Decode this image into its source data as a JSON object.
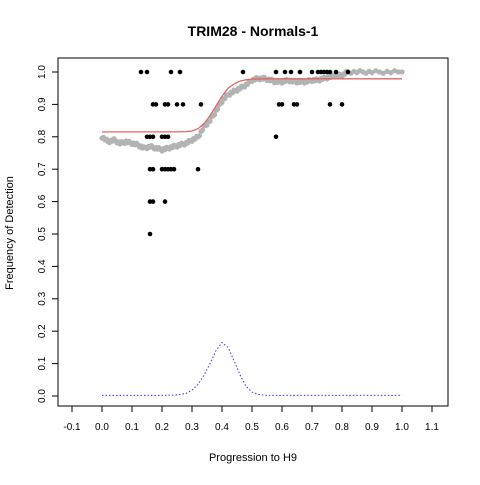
{
  "chart_data": {
    "type": "scatter",
    "title": "TRIM28 - Normals-1",
    "xlabel": "Progression to H9",
    "ylabel": "Frequency of Detection",
    "xlim": [
      -0.1,
      1.1
    ],
    "ylim": [
      0.0,
      1.0
    ],
    "x_ticks": [
      "-0.1",
      "0.0",
      "0.1",
      "0.2",
      "0.3",
      "0.4",
      "0.5",
      "0.6",
      "0.7",
      "0.8",
      "0.9",
      "1.0",
      "1.1"
    ],
    "y_ticks": [
      "0.0",
      "0.1",
      "0.2",
      "0.3",
      "0.4",
      "0.5",
      "0.6",
      "0.7",
      "0.8",
      "0.9",
      "1.0"
    ],
    "grid": false,
    "colors": {
      "observed": "#000000",
      "smoothed": "#b3b3b3",
      "fit": "#e06666",
      "density": "#3333ff"
    },
    "series": [
      {
        "type": "scatter",
        "points": [
          [
            0.13,
            1.0
          ],
          [
            0.15,
            1.0
          ],
          [
            0.23,
            1.0
          ],
          [
            0.26,
            1.0
          ],
          [
            0.47,
            1.0
          ],
          [
            0.58,
            1.0
          ],
          [
            0.61,
            1.0
          ],
          [
            0.63,
            1.0
          ],
          [
            0.66,
            1.0
          ],
          [
            0.7,
            1.0
          ],
          [
            0.72,
            1.0
          ],
          [
            0.73,
            1.0
          ],
          [
            0.74,
            1.0
          ],
          [
            0.75,
            1.0
          ],
          [
            0.76,
            1.0
          ],
          [
            0.78,
            1.0
          ],
          [
            0.82,
            1.0
          ],
          [
            0.17,
            0.9
          ],
          [
            0.18,
            0.9
          ],
          [
            0.21,
            0.9
          ],
          [
            0.22,
            0.9
          ],
          [
            0.25,
            0.9
          ],
          [
            0.27,
            0.9
          ],
          [
            0.33,
            0.9
          ],
          [
            0.59,
            0.9
          ],
          [
            0.6,
            0.9
          ],
          [
            0.64,
            0.9
          ],
          [
            0.65,
            0.9
          ],
          [
            0.76,
            0.9
          ],
          [
            0.8,
            0.9
          ],
          [
            0.15,
            0.8
          ],
          [
            0.16,
            0.8
          ],
          [
            0.17,
            0.8
          ],
          [
            0.2,
            0.8
          ],
          [
            0.21,
            0.8
          ],
          [
            0.22,
            0.8
          ],
          [
            0.58,
            0.8
          ],
          [
            0.16,
            0.7
          ],
          [
            0.17,
            0.7
          ],
          [
            0.2,
            0.7
          ],
          [
            0.21,
            0.7
          ],
          [
            0.22,
            0.7
          ],
          [
            0.23,
            0.7
          ],
          [
            0.24,
            0.7
          ],
          [
            0.32,
            0.7
          ],
          [
            0.16,
            0.6
          ],
          [
            0.17,
            0.6
          ],
          [
            0.21,
            0.6
          ],
          [
            0.16,
            0.5
          ]
        ]
      },
      {
        "type": "line",
        "points": [
          [
            0.0,
            0.8
          ],
          [
            0.02,
            0.785
          ],
          [
            0.04,
            0.79
          ],
          [
            0.06,
            0.78
          ],
          [
            0.08,
            0.785
          ],
          [
            0.1,
            0.78
          ],
          [
            0.12,
            0.775
          ],
          [
            0.14,
            0.765
          ],
          [
            0.16,
            0.77
          ],
          [
            0.18,
            0.765
          ],
          [
            0.2,
            0.76
          ],
          [
            0.22,
            0.765
          ],
          [
            0.24,
            0.77
          ],
          [
            0.26,
            0.775
          ],
          [
            0.28,
            0.78
          ],
          [
            0.3,
            0.79
          ],
          [
            0.32,
            0.8
          ],
          [
            0.34,
            0.83
          ],
          [
            0.36,
            0.85
          ],
          [
            0.38,
            0.88
          ],
          [
            0.4,
            0.91
          ],
          [
            0.42,
            0.93
          ],
          [
            0.44,
            0.94
          ],
          [
            0.46,
            0.95
          ],
          [
            0.48,
            0.96
          ],
          [
            0.5,
            0.975
          ],
          [
            0.52,
            0.98
          ],
          [
            0.54,
            0.98
          ],
          [
            0.56,
            0.975
          ],
          [
            0.58,
            0.97
          ],
          [
            0.6,
            0.97
          ],
          [
            0.62,
            0.975
          ],
          [
            0.64,
            0.97
          ],
          [
            0.66,
            0.97
          ],
          [
            0.68,
            0.97
          ],
          [
            0.7,
            0.975
          ],
          [
            0.72,
            0.975
          ],
          [
            0.74,
            0.98
          ],
          [
            0.76,
            0.985
          ],
          [
            0.78,
            0.99
          ],
          [
            0.8,
            0.99
          ],
          [
            0.82,
            1.0
          ],
          [
            0.86,
            1.0
          ],
          [
            0.9,
            1.0
          ],
          [
            0.95,
            1.0
          ],
          [
            1.0,
            1.0
          ]
        ]
      },
      {
        "type": "line",
        "points": [
          [
            0.0,
            0.815
          ],
          [
            0.05,
            0.815
          ],
          [
            0.1,
            0.815
          ],
          [
            0.15,
            0.815
          ],
          [
            0.2,
            0.815
          ],
          [
            0.25,
            0.815
          ],
          [
            0.28,
            0.816
          ],
          [
            0.3,
            0.818
          ],
          [
            0.32,
            0.825
          ],
          [
            0.34,
            0.84
          ],
          [
            0.36,
            0.865
          ],
          [
            0.38,
            0.895
          ],
          [
            0.4,
            0.925
          ],
          [
            0.42,
            0.95
          ],
          [
            0.44,
            0.963
          ],
          [
            0.46,
            0.972
          ],
          [
            0.48,
            0.976
          ],
          [
            0.5,
            0.978
          ],
          [
            0.55,
            0.979
          ],
          [
            0.6,
            0.979
          ],
          [
            0.7,
            0.979
          ],
          [
            0.8,
            0.979
          ],
          [
            0.9,
            0.979
          ],
          [
            1.0,
            0.979
          ]
        ]
      },
      {
        "type": "line",
        "points": [
          [
            0.0,
            0.002
          ],
          [
            0.1,
            0.002
          ],
          [
            0.2,
            0.002
          ],
          [
            0.25,
            0.003
          ],
          [
            0.28,
            0.008
          ],
          [
            0.3,
            0.018
          ],
          [
            0.32,
            0.036
          ],
          [
            0.34,
            0.064
          ],
          [
            0.36,
            0.1
          ],
          [
            0.38,
            0.14
          ],
          [
            0.4,
            0.165
          ],
          [
            0.42,
            0.15
          ],
          [
            0.44,
            0.11
          ],
          [
            0.46,
            0.065
          ],
          [
            0.48,
            0.03
          ],
          [
            0.5,
            0.012
          ],
          [
            0.52,
            0.005
          ],
          [
            0.55,
            0.002
          ],
          [
            0.6,
            0.002
          ],
          [
            0.8,
            0.002
          ],
          [
            1.0,
            0.002
          ]
        ]
      }
    ]
  }
}
